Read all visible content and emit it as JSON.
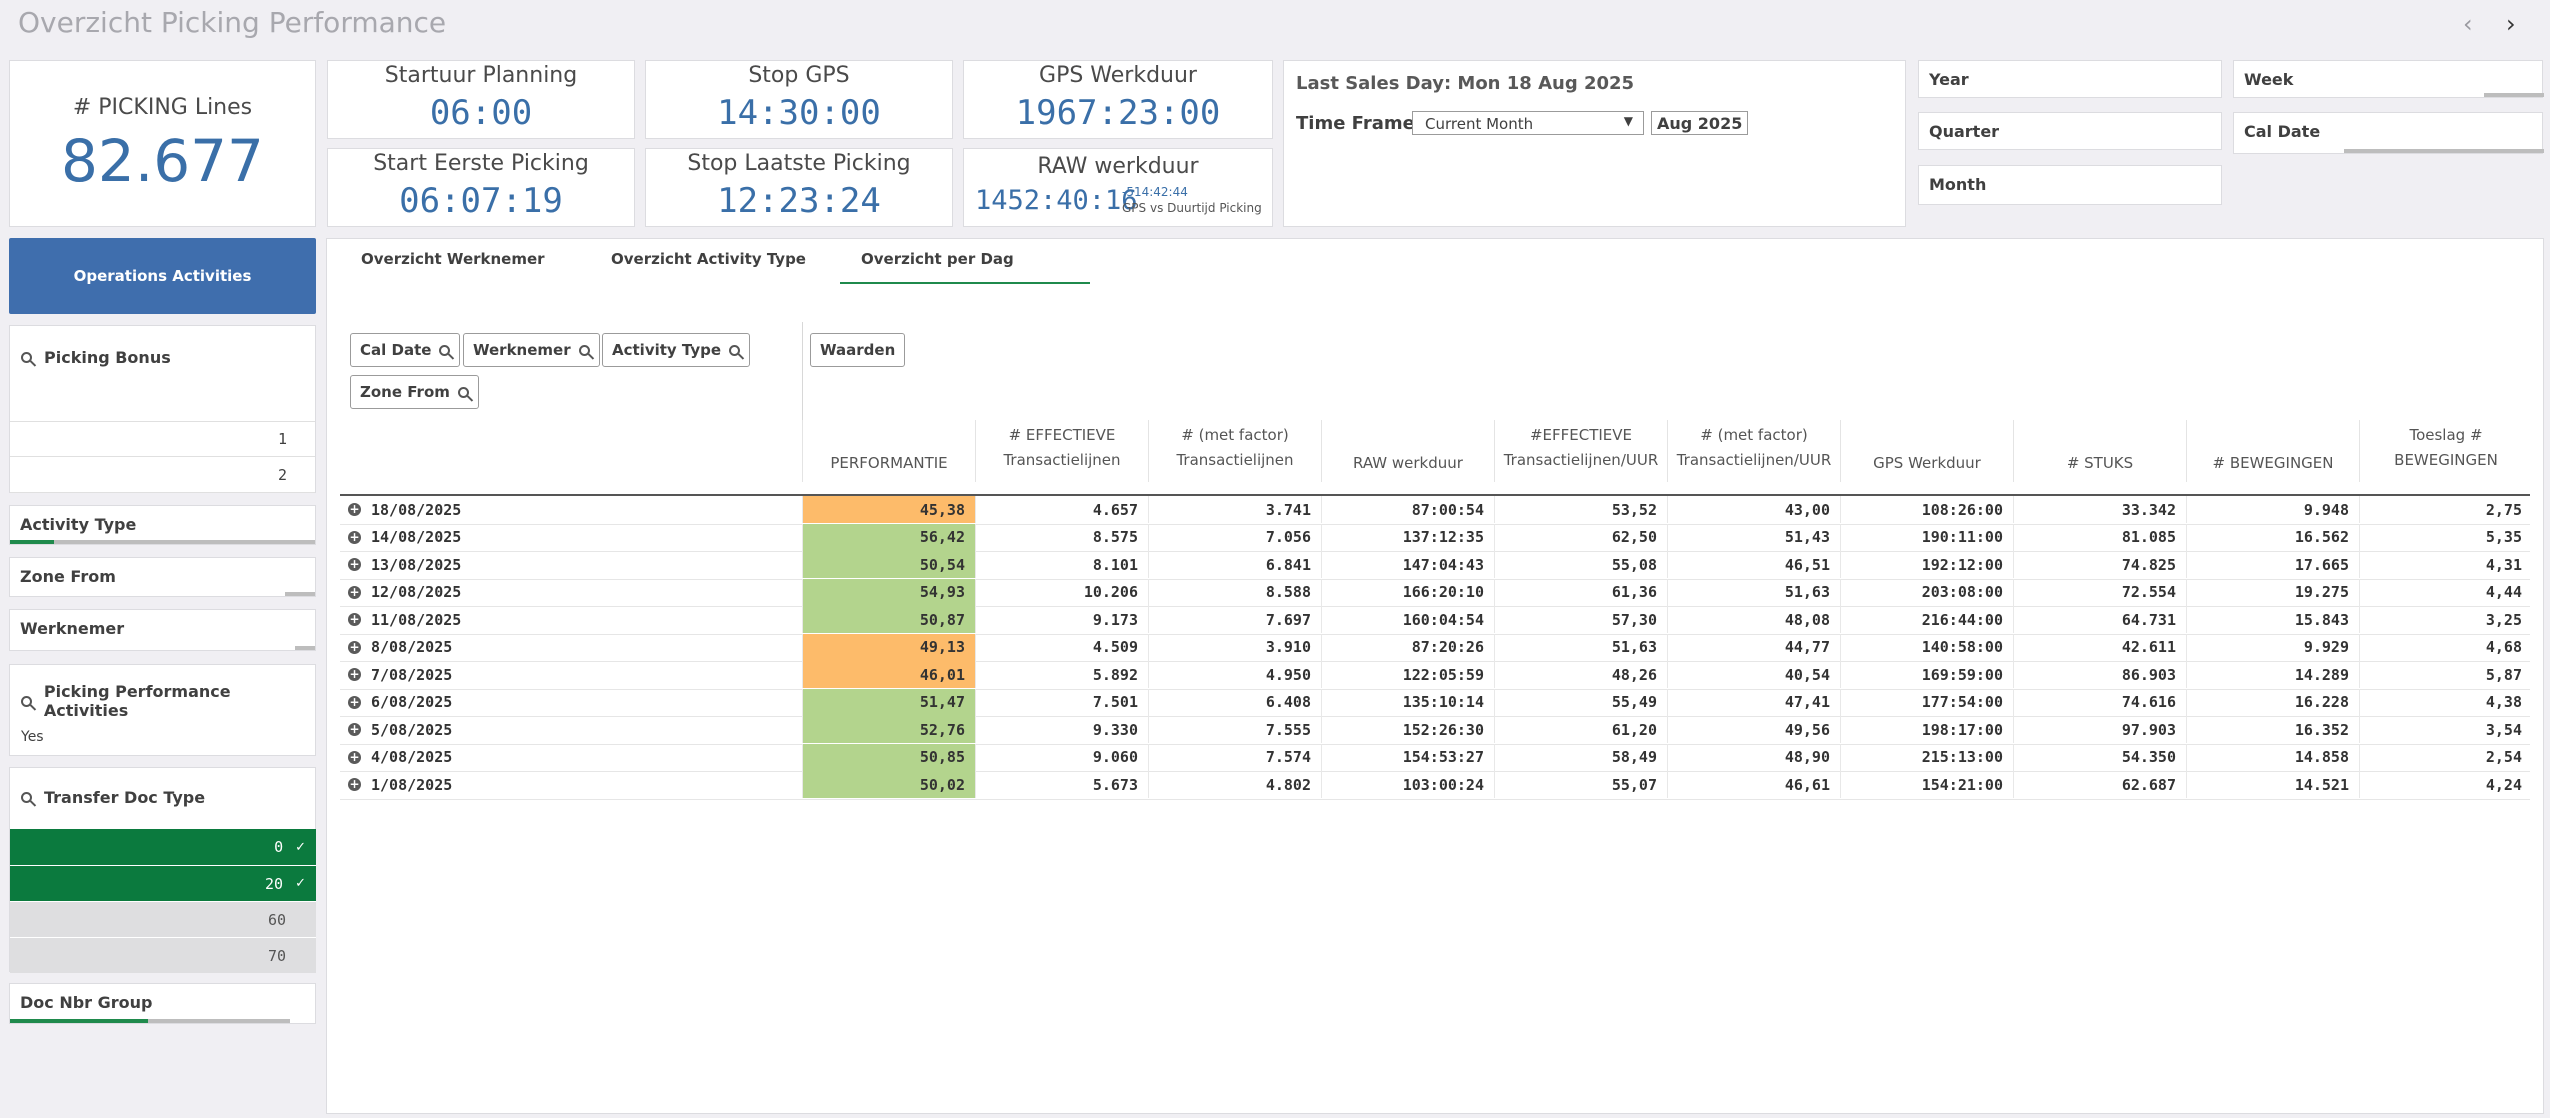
{
  "app": {
    "title": "Overzicht Picking Performance"
  },
  "kpis": {
    "picking_lines": {
      "label": "# PICKING Lines",
      "value": "82.677"
    },
    "startuur_planning": {
      "label": "Startuur Planning",
      "value": "06:00"
    },
    "stop_gps": {
      "label": "Stop GPS",
      "value": "14:30:00"
    },
    "gps_werkduur": {
      "label": "GPS Werkduur",
      "value": "1967:23:00"
    },
    "start_eerste_picking": {
      "label": "Start Eerste Picking",
      "value": "06:07:19"
    },
    "stop_laatste_picking": {
      "label": "Stop Laatste Picking",
      "value": "12:23:24"
    },
    "raw_werkduur": {
      "label": "RAW werkduur",
      "value": "1452:40:16",
      "diff": "-514:42:44",
      "diff_label": "GPS vs Duurtijd Picking"
    }
  },
  "timeframe": {
    "last_sales_day": "Last Sales Day: Mon 18 Aug 2025",
    "label": "Time Frame:",
    "selected": "Current Month",
    "period_badge": "Aug 2025"
  },
  "filters": {
    "year": "Year",
    "week": "Week",
    "quarter": "Quarter",
    "cal_date": "Cal Date",
    "month": "Month"
  },
  "sidebar": {
    "operations_button": "Operations Activities",
    "picking_bonus": {
      "title": "Picking Bonus",
      "items": [
        "1",
        "2"
      ]
    },
    "activity_type": "Activity Type",
    "zone_from": "Zone From",
    "werknemer": "Werknemer",
    "picking_perf_activities": {
      "title": "Picking Performance Activities",
      "value": "Yes"
    },
    "transfer_doc_type": {
      "title": "Transfer Doc Type",
      "items": [
        {
          "label": "0",
          "selected": true
        },
        {
          "label": "20",
          "selected": true
        },
        {
          "label": "60",
          "selected": false
        },
        {
          "label": "70",
          "selected": false
        }
      ]
    },
    "doc_nbr_group": "Doc Nbr Group"
  },
  "tabs": [
    {
      "label": "Overzicht Werknemer",
      "active": false
    },
    {
      "label": "Overzicht Activity Type",
      "active": false
    },
    {
      "label": "Overzicht per Dag",
      "active": true
    }
  ],
  "pivot": {
    "dimension_chips": [
      "Cal Date",
      "Werknemer",
      "Activity Type",
      "Zone From"
    ],
    "values_chip": "Waarden",
    "columns": [
      [
        "PERFORMANTIE"
      ],
      [
        "# EFFECTIEVE",
        "Transactielijnen"
      ],
      [
        "# (met factor)",
        "Transactielijnen"
      ],
      [
        "RAW werkduur"
      ],
      [
        "#EFFECTIEVE",
        "Transactielijnen/UUR"
      ],
      [
        "# (met factor)",
        "Transactielijnen/UUR"
      ],
      [
        "GPS Werkduur"
      ],
      [
        "# STUKS"
      ],
      [
        "# BEWEGINGEN"
      ],
      [
        "Toeslag #",
        "BEWEGINGEN"
      ]
    ],
    "rows": [
      {
        "date": "18/08/2025",
        "perf": "45,38",
        "status": "orange",
        "v": [
          "4.657",
          "3.741",
          "87:00:54",
          "53,52",
          "43,00",
          "108:26:00",
          "33.342",
          "9.948",
          "2,75"
        ]
      },
      {
        "date": "14/08/2025",
        "perf": "56,42",
        "status": "green",
        "v": [
          "8.575",
          "7.056",
          "137:12:35",
          "62,50",
          "51,43",
          "190:11:00",
          "81.085",
          "16.562",
          "5,35"
        ]
      },
      {
        "date": "13/08/2025",
        "perf": "50,54",
        "status": "green",
        "v": [
          "8.101",
          "6.841",
          "147:04:43",
          "55,08",
          "46,51",
          "192:12:00",
          "74.825",
          "17.665",
          "4,31"
        ]
      },
      {
        "date": "12/08/2025",
        "perf": "54,93",
        "status": "green",
        "v": [
          "10.206",
          "8.588",
          "166:20:10",
          "61,36",
          "51,63",
          "203:08:00",
          "72.554",
          "19.275",
          "4,44"
        ]
      },
      {
        "date": "11/08/2025",
        "perf": "50,87",
        "status": "green",
        "v": [
          "9.173",
          "7.697",
          "160:04:54",
          "57,30",
          "48,08",
          "216:44:00",
          "64.731",
          "15.843",
          "3,25"
        ]
      },
      {
        "date": "8/08/2025",
        "perf": "49,13",
        "status": "orange",
        "v": [
          "4.509",
          "3.910",
          "87:20:26",
          "51,63",
          "44,77",
          "140:58:00",
          "42.611",
          "9.929",
          "4,68"
        ]
      },
      {
        "date": "7/08/2025",
        "perf": "46,01",
        "status": "orange",
        "v": [
          "5.892",
          "4.950",
          "122:05:59",
          "48,26",
          "40,54",
          "169:59:00",
          "86.903",
          "14.289",
          "5,87"
        ]
      },
      {
        "date": "6/08/2025",
        "perf": "51,47",
        "status": "green",
        "v": [
          "7.501",
          "6.408",
          "135:10:14",
          "55,49",
          "47,41",
          "177:54:00",
          "74.616",
          "16.228",
          "4,38"
        ]
      },
      {
        "date": "5/08/2025",
        "perf": "52,76",
        "status": "green",
        "v": [
          "9.330",
          "7.555",
          "152:26:30",
          "61,20",
          "49,56",
          "198:17:00",
          "97.903",
          "16.352",
          "3,54"
        ]
      },
      {
        "date": "4/08/2025",
        "perf": "50,85",
        "status": "green",
        "v": [
          "9.060",
          "7.574",
          "154:53:27",
          "58,49",
          "48,90",
          "215:13:00",
          "54.350",
          "14.858",
          "2,54"
        ]
      },
      {
        "date": "1/08/2025",
        "perf": "50,02",
        "status": "green",
        "v": [
          "5.673",
          "4.802",
          "103:00:24",
          "55,07",
          "46,61",
          "154:21:00",
          "62.687",
          "14.521",
          "4,24"
        ]
      }
    ]
  },
  "colors": {
    "perf_orange": "#fdbb6a",
    "perf_green": "#b3d48d",
    "accent_blue": "#3a6fa8",
    "selected_green": "#0b7a3e"
  }
}
